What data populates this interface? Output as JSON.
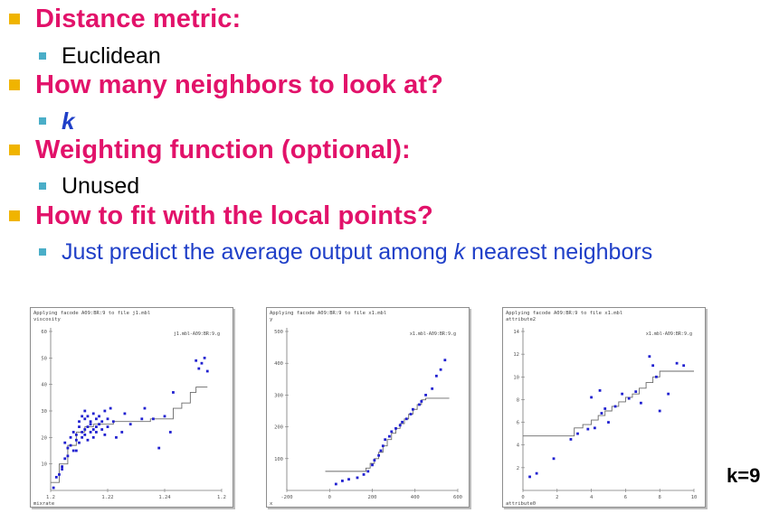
{
  "bullets": [
    {
      "title": "Distance metric:",
      "sub": {
        "text": "Euclidean"
      }
    },
    {
      "title": "How many neighbors to look at?",
      "sub": {
        "text": "k"
      }
    },
    {
      "title": "Weighting function (optional):",
      "sub": {
        "text": "Unused"
      }
    },
    {
      "title": "How to fit with the local points?",
      "sub": {
        "prefix": "Just predict the average output among ",
        "k": "k",
        "suffix": " nearest neighbors"
      }
    }
  ],
  "k_label": "k=9",
  "colors": {
    "heading": "#e2126a",
    "bullet_square": "#f0b400",
    "sub_bullet": "#4aaec8",
    "blue_text": "#1f3fc8"
  },
  "chart_data": [
    {
      "type": "scatter",
      "title": "Applying facode A09:BR:9 to file j1.mbl",
      "ylabel": "viscosity",
      "xlabel": "mixrate",
      "legend": "j1.mbl-A09:BR:9.g",
      "xticks": [
        "1.2",
        "1.22",
        "1.24",
        "1.2"
      ],
      "yticks": [
        "10",
        "20",
        "30",
        "40",
        "50",
        "60"
      ],
      "xlim": [
        1.2,
        1.26
      ],
      "ylim": [
        0,
        60
      ],
      "points": [
        [
          1.201,
          1
        ],
        [
          1.202,
          5
        ],
        [
          1.203,
          6
        ],
        [
          1.204,
          9
        ],
        [
          1.205,
          12
        ],
        [
          1.205,
          18
        ],
        [
          1.206,
          16
        ],
        [
          1.207,
          17
        ],
        [
          1.207,
          20
        ],
        [
          1.208,
          15
        ],
        [
          1.208,
          22
        ],
        [
          1.209,
          19
        ],
        [
          1.209,
          21
        ],
        [
          1.21,
          24
        ],
        [
          1.21,
          18
        ],
        [
          1.21,
          26
        ],
        [
          1.211,
          20
        ],
        [
          1.211,
          22
        ],
        [
          1.212,
          23
        ],
        [
          1.212,
          27
        ],
        [
          1.212,
          21
        ],
        [
          1.213,
          24
        ],
        [
          1.213,
          28
        ],
        [
          1.213,
          19
        ],
        [
          1.214,
          22
        ],
        [
          1.214,
          25
        ],
        [
          1.214,
          26
        ],
        [
          1.215,
          29
        ],
        [
          1.215,
          23
        ],
        [
          1.215,
          20
        ],
        [
          1.216,
          24
        ],
        [
          1.216,
          27
        ],
        [
          1.216,
          22
        ],
        [
          1.217,
          25
        ],
        [
          1.217,
          28
        ],
        [
          1.218,
          23
        ],
        [
          1.218,
          26
        ],
        [
          1.219,
          30
        ],
        [
          1.219,
          21
        ],
        [
          1.22,
          27
        ],
        [
          1.22,
          24
        ],
        [
          1.221,
          31
        ],
        [
          1.222,
          26
        ],
        [
          1.223,
          20
        ],
        [
          1.225,
          22
        ],
        [
          1.226,
          29
        ],
        [
          1.228,
          25
        ],
        [
          1.232,
          27
        ],
        [
          1.233,
          31
        ],
        [
          1.236,
          27
        ],
        [
          1.238,
          16
        ],
        [
          1.24,
          28
        ],
        [
          1.242,
          22
        ],
        [
          1.243,
          37
        ],
        [
          1.251,
          49
        ],
        [
          1.252,
          46
        ],
        [
          1.253,
          48
        ],
        [
          1.254,
          50
        ],
        [
          1.255,
          45
        ],
        [
          1.209,
          15
        ],
        [
          1.206,
          13
        ],
        [
          1.204,
          8
        ],
        [
          1.212,
          30
        ],
        [
          1.211,
          28
        ]
      ],
      "fit_steps": [
        [
          1.2,
          3
        ],
        [
          1.203,
          10
        ],
        [
          1.206,
          17
        ],
        [
          1.209,
          22
        ],
        [
          1.212,
          24
        ],
        [
          1.215,
          25
        ],
        [
          1.222,
          26
        ],
        [
          1.23,
          26
        ],
        [
          1.235,
          27
        ],
        [
          1.24,
          27
        ],
        [
          1.243,
          31
        ],
        [
          1.246,
          33
        ],
        [
          1.249,
          37
        ],
        [
          1.251,
          39
        ],
        [
          1.255,
          39
        ]
      ]
    },
    {
      "type": "scatter",
      "title": "Applying facode A09:BR:9 to file x1.mbl",
      "ylabel": "y",
      "xlabel": "x",
      "legend": "x1.mbl-A09:BR:9.g",
      "xticks": [
        "-200",
        "0",
        "200",
        "400",
        "600"
      ],
      "yticks": [
        "100",
        "200",
        "300",
        "400",
        "500"
      ],
      "xlim": [
        -200,
        600
      ],
      "ylim": [
        0,
        500
      ],
      "points": [
        [
          30,
          20
        ],
        [
          60,
          30
        ],
        [
          90,
          35
        ],
        [
          130,
          40
        ],
        [
          160,
          50
        ],
        [
          180,
          60
        ],
        [
          200,
          80
        ],
        [
          210,
          95
        ],
        [
          230,
          110
        ],
        [
          240,
          125
        ],
        [
          250,
          140
        ],
        [
          260,
          160
        ],
        [
          280,
          170
        ],
        [
          290,
          185
        ],
        [
          310,
          195
        ],
        [
          330,
          205
        ],
        [
          340,
          215
        ],
        [
          360,
          225
        ],
        [
          380,
          240
        ],
        [
          390,
          255
        ],
        [
          420,
          270
        ],
        [
          430,
          280
        ],
        [
          450,
          300
        ],
        [
          480,
          320
        ],
        [
          500,
          360
        ],
        [
          520,
          380
        ],
        [
          540,
          410
        ]
      ],
      "fit_steps": [
        [
          -20,
          60
        ],
        [
          140,
          60
        ],
        [
          170,
          70
        ],
        [
          190,
          85
        ],
        [
          210,
          100
        ],
        [
          230,
          120
        ],
        [
          250,
          140
        ],
        [
          270,
          160
        ],
        [
          290,
          180
        ],
        [
          310,
          195
        ],
        [
          330,
          210
        ],
        [
          350,
          225
        ],
        [
          370,
          240
        ],
        [
          390,
          255
        ],
        [
          410,
          270
        ],
        [
          430,
          285
        ],
        [
          450,
          290
        ],
        [
          560,
          290
        ]
      ]
    },
    {
      "type": "scatter",
      "title": "Applying facode A09:BR:9 to file x1.mbl",
      "ylabel": "attribute2",
      "xlabel": "attribute0",
      "legend": "x1.mbl-A09:BR:9.g",
      "xticks": [
        "0",
        "2",
        "4",
        "6",
        "8",
        "10"
      ],
      "yticks": [
        "2",
        "4",
        "6",
        "8",
        "10",
        "12",
        "14"
      ],
      "xlim": [
        0,
        10
      ],
      "ylim": [
        0,
        14
      ],
      "points": [
        [
          0.4,
          1.2
        ],
        [
          0.8,
          1.5
        ],
        [
          1.8,
          2.8
        ],
        [
          2.8,
          4.5
        ],
        [
          3.2,
          5.0
        ],
        [
          3.8,
          5.4
        ],
        [
          4.0,
          8.2
        ],
        [
          4.2,
          5.5
        ],
        [
          4.5,
          8.8
        ],
        [
          4.6,
          6.8
        ],
        [
          4.8,
          7.2
        ],
        [
          5.0,
          6.0
        ],
        [
          5.4,
          7.4
        ],
        [
          5.8,
          8.5
        ],
        [
          6.2,
          8.1
        ],
        [
          6.6,
          8.7
        ],
        [
          6.9,
          7.7
        ],
        [
          7.4,
          11.8
        ],
        [
          7.6,
          11.0
        ],
        [
          7.8,
          10.0
        ],
        [
          8.0,
          7.0
        ],
        [
          8.5,
          8.5
        ],
        [
          9.0,
          11.2
        ],
        [
          9.4,
          11.0
        ]
      ],
      "fit_steps": [
        [
          0,
          4.8
        ],
        [
          2.8,
          4.8
        ],
        [
          3.0,
          5.5
        ],
        [
          3.5,
          5.8
        ],
        [
          4.0,
          6.2
        ],
        [
          4.4,
          6.6
        ],
        [
          4.8,
          7.0
        ],
        [
          5.2,
          7.4
        ],
        [
          5.6,
          7.8
        ],
        [
          6.0,
          8.2
        ],
        [
          6.4,
          8.5
        ],
        [
          6.8,
          9.0
        ],
        [
          7.2,
          9.5
        ],
        [
          7.6,
          10.0
        ],
        [
          8.0,
          10.5
        ],
        [
          10.0,
          10.5
        ]
      ]
    }
  ]
}
